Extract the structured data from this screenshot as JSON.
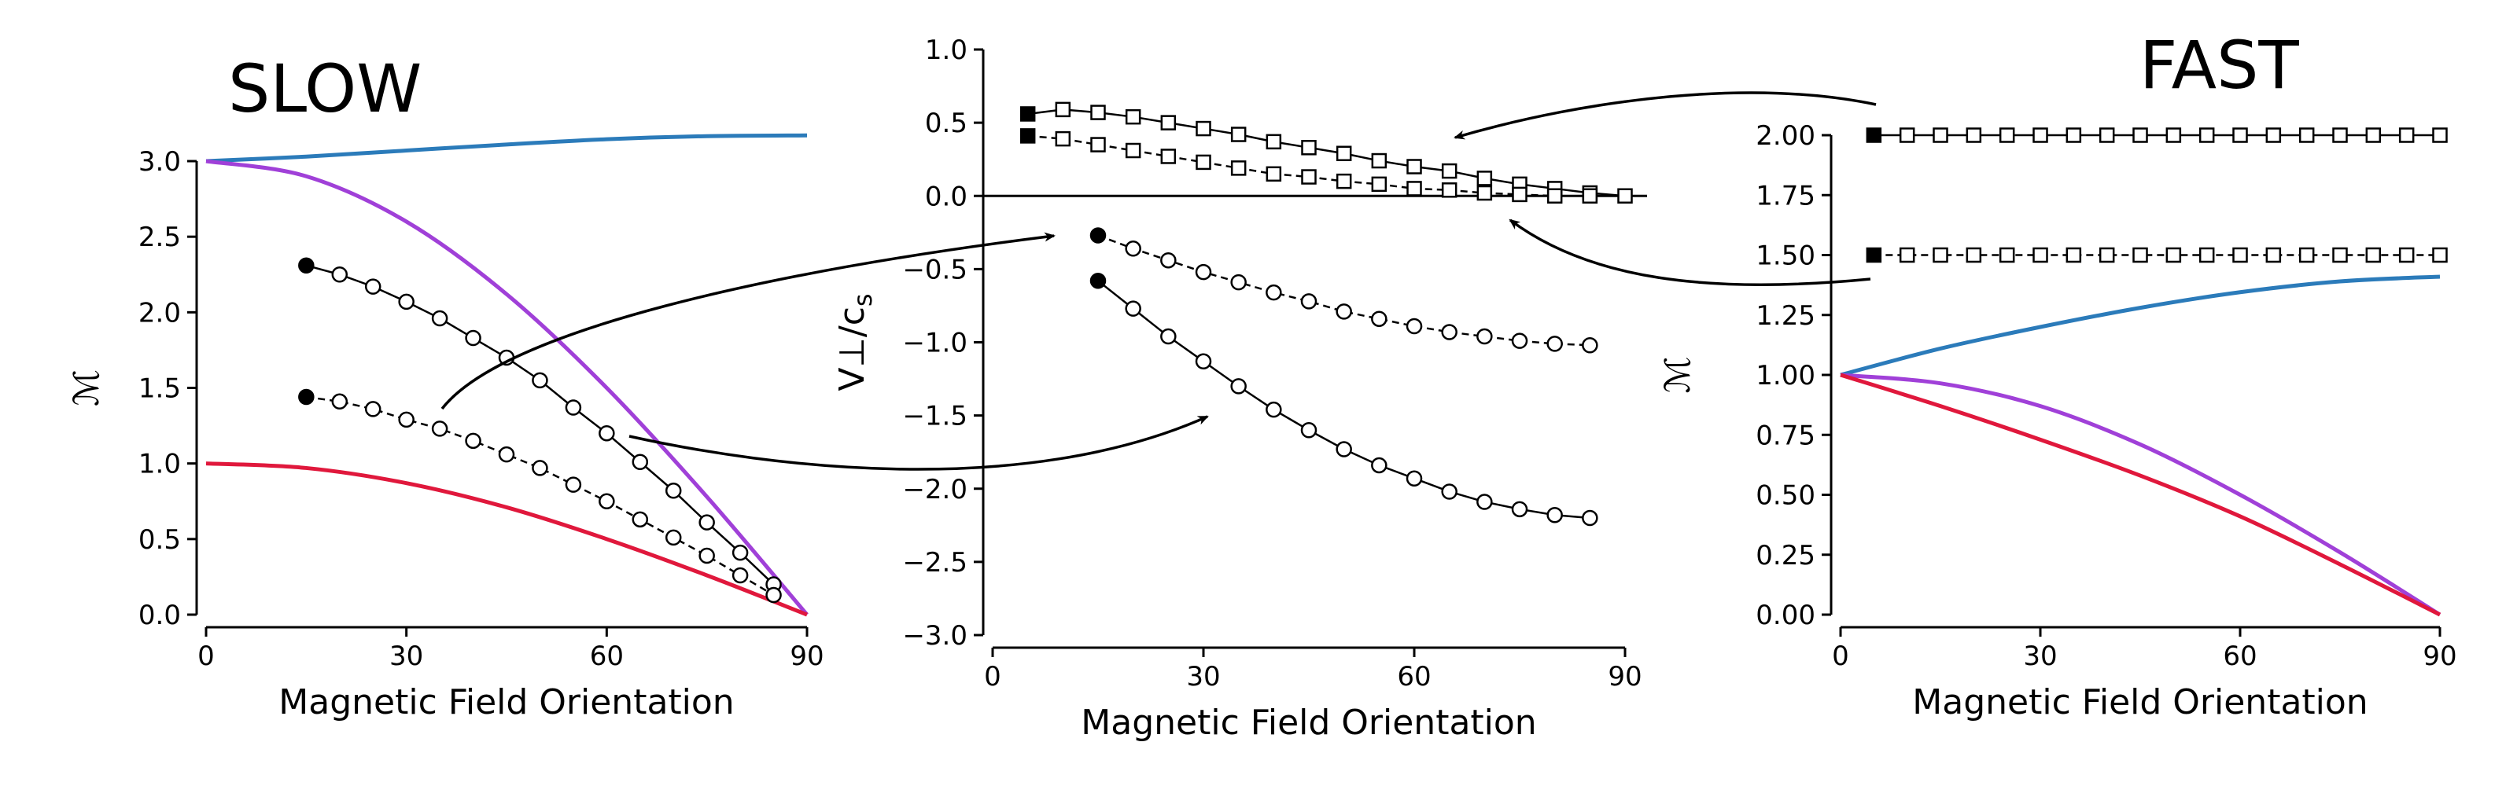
{
  "labels": {
    "slow": "SLOW",
    "fast": "FAST"
  },
  "colors": {
    "blue": "#2b7bba",
    "purple": "#a040d8",
    "red": "#e0183c",
    "black": "#000000"
  },
  "chart_data": [
    {
      "type": "line",
      "name": "slow",
      "title": "",
      "xlabel": "Magnetic Field Orientation",
      "ylabel": "ℳ",
      "xlim": [
        0,
        90
      ],
      "ylim": [
        0,
        3.0
      ],
      "xticks": [
        0,
        30,
        60,
        90
      ],
      "xtick_labels": [
        "0",
        "30",
        "60",
        "90"
      ],
      "yticks": [
        0,
        0.5,
        1.0,
        1.5,
        2.0,
        2.5,
        3.0
      ],
      "ytick_labels": [
        "0.0",
        "0.5",
        "1.0",
        "1.5",
        "2.0",
        "2.5",
        "3.0"
      ],
      "grid": false,
      "series": [
        {
          "color": "#2b7bba",
          "style": "solid",
          "marker": "none",
          "x": [
            0,
            15,
            30,
            45,
            60,
            75,
            90
          ],
          "y": [
            3.0,
            3.03,
            3.07,
            3.11,
            3.145,
            3.165,
            3.17
          ]
        },
        {
          "color": "#a040d8",
          "style": "solid",
          "marker": "none",
          "x": [
            0,
            15,
            30,
            45,
            60,
            75,
            90
          ],
          "y": [
            3.0,
            2.9,
            2.6,
            2.12,
            1.5,
            0.78,
            0.0
          ]
        },
        {
          "color": "#e0183c",
          "style": "solid",
          "marker": "none",
          "x": [
            0,
            15,
            30,
            45,
            60,
            75,
            90
          ],
          "y": [
            1.0,
            0.97,
            0.87,
            0.71,
            0.5,
            0.26,
            0.0
          ]
        },
        {
          "color": "#000000",
          "style": "solid",
          "marker": "circle",
          "first_marker_filled": true,
          "x": [
            15,
            20,
            25,
            30,
            35,
            40,
            45,
            50,
            55,
            60,
            65,
            70,
            75,
            80,
            85
          ],
          "y": [
            2.31,
            2.25,
            2.17,
            2.07,
            1.96,
            1.83,
            1.7,
            1.55,
            1.37,
            1.2,
            1.01,
            0.82,
            0.61,
            0.41,
            0.2
          ]
        },
        {
          "color": "#000000",
          "style": "dashed",
          "marker": "circle",
          "first_marker_filled": true,
          "x": [
            15,
            20,
            25,
            30,
            35,
            40,
            45,
            50,
            55,
            60,
            65,
            70,
            75,
            80,
            85
          ],
          "y": [
            1.44,
            1.41,
            1.36,
            1.29,
            1.23,
            1.15,
            1.06,
            0.97,
            0.86,
            0.75,
            0.63,
            0.51,
            0.39,
            0.26,
            0.13
          ]
        }
      ]
    },
    {
      "type": "line",
      "name": "velocity",
      "title": "",
      "xlabel": "Magnetic Field Orientation",
      "ylabel": "V⊥/c",
      "ylabel_sub": "s",
      "xlim": [
        0,
        90
      ],
      "ylim": [
        -3.0,
        1.0
      ],
      "xticks": [
        0,
        30,
        60,
        90
      ],
      "xtick_labels": [
        "0",
        "30",
        "60",
        "90"
      ],
      "yticks": [
        -3.0,
        -2.5,
        -2.0,
        -1.5,
        -1.0,
        -0.5,
        0.0,
        0.5,
        1.0
      ],
      "ytick_labels": [
        "−3.0",
        "−2.5",
        "−2.0",
        "−1.5",
        "−1.0",
        "−0.5",
        "0.0",
        "0.5",
        "1.0"
      ],
      "hline": 0,
      "grid": false,
      "series": [
        {
          "color": "#000000",
          "style": "solid",
          "marker": "square",
          "first_marker_filled": true,
          "x": [
            5,
            10,
            15,
            20,
            25,
            30,
            35,
            40,
            45,
            50,
            55,
            60,
            65,
            70,
            75,
            80,
            85,
            90
          ],
          "y": [
            0.56,
            0.59,
            0.57,
            0.54,
            0.5,
            0.46,
            0.42,
            0.37,
            0.33,
            0.29,
            0.24,
            0.2,
            0.17,
            0.12,
            0.08,
            0.05,
            0.02,
            0.0
          ]
        },
        {
          "color": "#000000",
          "style": "dashed",
          "marker": "square",
          "first_marker_filled": true,
          "x": [
            5,
            10,
            15,
            20,
            25,
            30,
            35,
            40,
            45,
            50,
            55,
            60,
            65,
            70,
            75,
            80,
            85
          ],
          "y": [
            0.41,
            0.39,
            0.35,
            0.31,
            0.27,
            0.23,
            0.19,
            0.15,
            0.13,
            0.1,
            0.08,
            0.05,
            0.04,
            0.02,
            0.01,
            0.0,
            0.0
          ]
        },
        {
          "color": "#000000",
          "style": "solid",
          "marker": "circle",
          "first_marker_filled": true,
          "x": [
            15,
            20,
            25,
            30,
            35,
            40,
            45,
            50,
            55,
            60,
            65,
            70,
            75,
            80,
            85
          ],
          "y": [
            -0.58,
            -0.77,
            -0.96,
            -1.13,
            -1.3,
            -1.46,
            -1.6,
            -1.73,
            -1.84,
            -1.93,
            -2.02,
            -2.09,
            -2.14,
            -2.18,
            -2.2
          ]
        },
        {
          "color": "#000000",
          "style": "dashed",
          "marker": "circle",
          "first_marker_filled": true,
          "x": [
            15,
            20,
            25,
            30,
            35,
            40,
            45,
            50,
            55,
            60,
            65,
            70,
            75,
            80,
            85
          ],
          "y": [
            -0.27,
            -0.36,
            -0.44,
            -0.52,
            -0.59,
            -0.66,
            -0.72,
            -0.79,
            -0.84,
            -0.89,
            -0.93,
            -0.96,
            -0.99,
            -1.01,
            -1.02
          ]
        }
      ]
    },
    {
      "type": "line",
      "name": "fast",
      "title": "",
      "xlabel": "Magnetic Field Orientation",
      "ylabel": "ℳ",
      "xlim": [
        0,
        90
      ],
      "ylim": [
        0,
        2.0
      ],
      "xticks": [
        0,
        30,
        60,
        90
      ],
      "xtick_labels": [
        "0",
        "30",
        "60",
        "90"
      ],
      "yticks": [
        0,
        0.25,
        0.5,
        0.75,
        1.0,
        1.25,
        1.5,
        1.75,
        2.0
      ],
      "ytick_labels": [
        "0.00",
        "0.25",
        "0.50",
        "0.75",
        "1.00",
        "1.25",
        "1.50",
        "1.75",
        "2.00"
      ],
      "grid": false,
      "series": [
        {
          "color": "#2b7bba",
          "style": "solid",
          "marker": "none",
          "x": [
            0,
            15,
            30,
            45,
            60,
            75,
            90
          ],
          "y": [
            1.0,
            1.11,
            1.2,
            1.28,
            1.345,
            1.39,
            1.41
          ]
        },
        {
          "color": "#a040d8",
          "style": "solid",
          "marker": "none",
          "x": [
            0,
            15,
            30,
            45,
            60,
            75,
            90
          ],
          "y": [
            1.0,
            0.965,
            0.87,
            0.71,
            0.5,
            0.26,
            0.0
          ]
        },
        {
          "color": "#e0183c",
          "style": "solid",
          "marker": "none",
          "x": [
            0,
            15,
            30,
            45,
            60,
            75,
            90
          ],
          "y": [
            1.0,
            0.87,
            0.73,
            0.58,
            0.41,
            0.21,
            0.0
          ]
        },
        {
          "color": "#000000",
          "style": "solid",
          "marker": "square",
          "first_marker_filled": true,
          "x": [
            5,
            10,
            15,
            20,
            25,
            30,
            35,
            40,
            45,
            50,
            55,
            60,
            65,
            70,
            75,
            80,
            85,
            90
          ],
          "y": [
            2.0,
            2.0,
            2.0,
            2.0,
            2.0,
            2.0,
            2.0,
            2.0,
            2.0,
            2.0,
            2.0,
            2.0,
            2.0,
            2.0,
            2.0,
            2.0,
            2.0,
            2.0
          ]
        },
        {
          "color": "#000000",
          "style": "dashed",
          "marker": "square",
          "first_marker_filled": true,
          "x": [
            5,
            10,
            15,
            20,
            25,
            30,
            35,
            40,
            45,
            50,
            55,
            60,
            65,
            70,
            75,
            80,
            85,
            90
          ],
          "y": [
            1.5,
            1.5,
            1.5,
            1.5,
            1.5,
            1.5,
            1.5,
            1.5,
            1.5,
            1.5,
            1.5,
            1.5,
            1.5,
            1.5,
            1.5,
            1.5,
            1.5,
            1.5
          ]
        }
      ]
    }
  ]
}
